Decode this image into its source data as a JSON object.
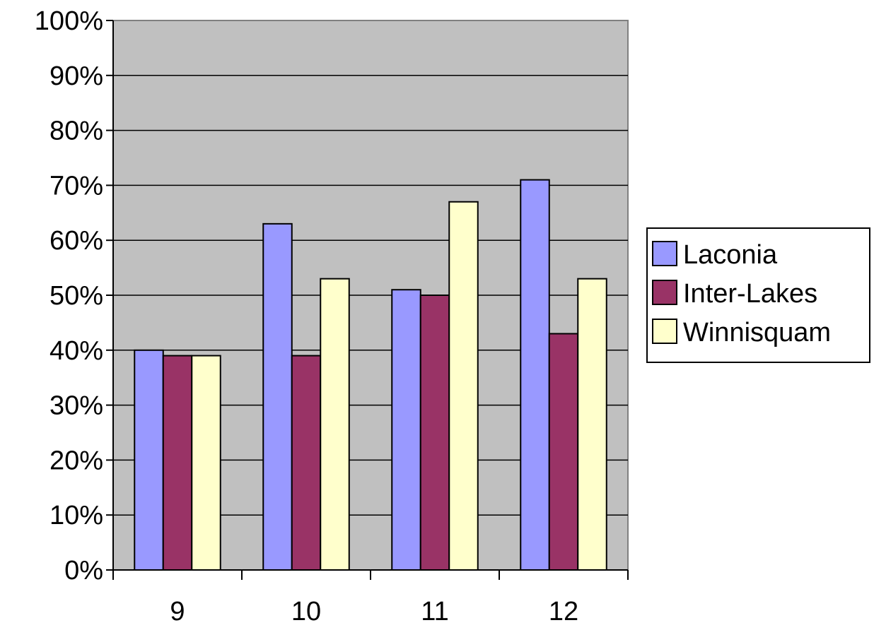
{
  "chart_data": {
    "type": "bar",
    "categories": [
      "9",
      "10",
      "11",
      "12"
    ],
    "series": [
      {
        "name": "Laconia",
        "values": [
          40,
          63,
          51,
          71
        ],
        "color": "#9999FF"
      },
      {
        "name": "Inter-Lakes",
        "values": [
          39,
          39,
          50,
          43
        ],
        "color": "#993366"
      },
      {
        "name": "Winnisquam",
        "values": [
          39,
          53,
          67,
          53
        ],
        "color": "#FFFFCC"
      }
    ],
    "ylim": [
      0,
      100
    ],
    "yticks": [
      "0%",
      "10%",
      "20%",
      "30%",
      "40%",
      "50%",
      "60%",
      "70%",
      "80%",
      "90%",
      "100%"
    ],
    "grid": true,
    "legend": "right",
    "plot_background": "#C0C0C0",
    "title": "",
    "xlabel": "",
    "ylabel": ""
  }
}
